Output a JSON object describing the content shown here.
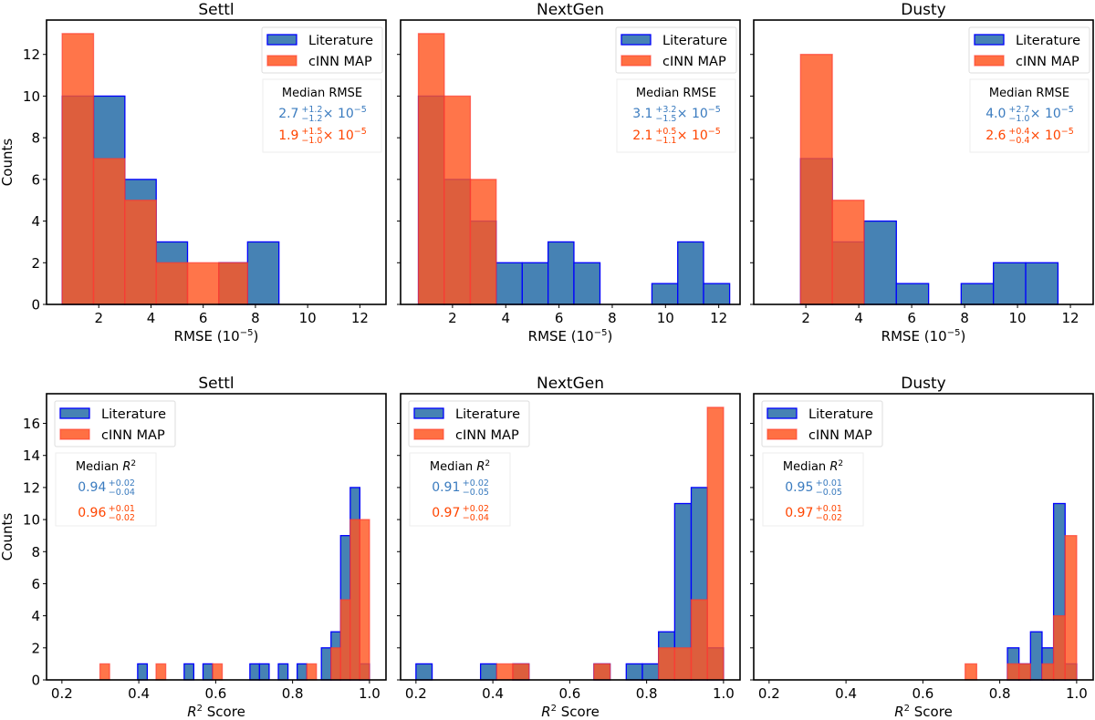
{
  "colors": {
    "literature_fill": "#4682b4",
    "literature_edge": "#0000ff",
    "cinn_fill": "#ff5722",
    "cinn_edge": "#ff3b30",
    "literature_text": "#3a7bbf",
    "cinn_text": "#ff4500",
    "axis": "#000000"
  },
  "chart_data": [
    {
      "type": "bar",
      "panel": "top-left",
      "title": "Settl",
      "xlabel": "RMSE (10⁻⁵)",
      "ylabel": "Counts",
      "xlim": [
        0.0,
        13.0
      ],
      "ylim": [
        0,
        13.65
      ],
      "xticks": [
        2,
        4,
        6,
        8,
        10,
        12
      ],
      "yticks": [
        0,
        2,
        4,
        6,
        8,
        10,
        12
      ],
      "show_yticklabels": true,
      "legend": {
        "position": "top-right",
        "entries": [
          "Literature",
          "cINN MAP"
        ]
      },
      "annotation": {
        "heading": "Median RMSE",
        "heading_sup": "",
        "position": "right",
        "lines": [
          {
            "series": "Literature",
            "value": "2.7",
            "plus": "+1.2",
            "minus": "−1.2",
            "suffix": " × 10",
            "exp": "−5"
          },
          {
            "series": "cINN MAP",
            "value": "1.9",
            "plus": "+1.5",
            "minus": "−1.0",
            "suffix": " × 10",
            "exp": "−5"
          }
        ]
      },
      "series": [
        {
          "name": "Literature",
          "bins": [
            [
              0.6,
              1.8,
              10
            ],
            [
              1.8,
              3.0,
              10
            ],
            [
              3.0,
              4.2,
              6
            ],
            [
              4.2,
              5.4,
              3
            ],
            [
              6.6,
              7.7,
              2
            ],
            [
              7.7,
              8.9,
              3
            ]
          ]
        },
        {
          "name": "cINN MAP",
          "bins": [
            [
              0.6,
              1.8,
              13
            ],
            [
              1.8,
              3.0,
              7
            ],
            [
              3.0,
              4.2,
              5
            ],
            [
              4.2,
              5.4,
              2
            ],
            [
              5.4,
              6.6,
              2
            ],
            [
              6.6,
              7.7,
              2
            ]
          ]
        }
      ]
    },
    {
      "type": "bar",
      "panel": "top-middle",
      "title": "NextGen",
      "xlabel": "RMSE (10⁻⁵)",
      "ylabel": "",
      "xlim": [
        0.05,
        12.8
      ],
      "ylim": [
        0,
        13.65
      ],
      "xticks": [
        2,
        4,
        6,
        8,
        10,
        12
      ],
      "yticks": [
        0,
        2,
        4,
        6,
        8,
        10,
        12
      ],
      "show_yticklabels": false,
      "legend": {
        "position": "top-right",
        "entries": [
          "Literature",
          "cINN MAP"
        ]
      },
      "annotation": {
        "heading": "Median RMSE",
        "heading_sup": "",
        "position": "right",
        "lines": [
          {
            "series": "Literature",
            "value": "3.1",
            "plus": "+3.2",
            "minus": "−1.5",
            "suffix": " × 10",
            "exp": "−5"
          },
          {
            "series": "cINN MAP",
            "value": "2.1",
            "plus": "+0.5",
            "minus": "−1.1",
            "suffix": " × 10",
            "exp": "−5"
          }
        ]
      },
      "series": [
        {
          "name": "Literature",
          "bins": [
            [
              0.72,
              1.69,
              10
            ],
            [
              1.69,
              2.67,
              6
            ],
            [
              2.67,
              3.64,
              4
            ],
            [
              3.64,
              4.62,
              2
            ],
            [
              4.62,
              5.59,
              2
            ],
            [
              5.59,
              6.56,
              3
            ],
            [
              6.56,
              7.54,
              2
            ],
            [
              9.49,
              10.46,
              1
            ],
            [
              10.46,
              11.43,
              3
            ],
            [
              11.43,
              12.41,
              1
            ]
          ]
        },
        {
          "name": "cINN MAP",
          "bins": [
            [
              0.72,
              1.69,
              13
            ],
            [
              1.69,
              2.67,
              10
            ],
            [
              2.67,
              3.64,
              6
            ]
          ]
        }
      ]
    },
    {
      "type": "bar",
      "panel": "top-right",
      "title": "Dusty",
      "xlabel": "RMSE (10⁻⁵)",
      "ylabel": "",
      "xlim": [
        0.03,
        12.86
      ],
      "ylim": [
        0,
        13.65
      ],
      "xticks": [
        2,
        4,
        6,
        8,
        10,
        12
      ],
      "yticks": [
        0,
        2,
        4,
        6,
        8,
        10,
        12
      ],
      "show_yticklabels": false,
      "legend": {
        "position": "top-right",
        "entries": [
          "Literature",
          "cINN MAP"
        ]
      },
      "annotation": {
        "heading": "Median RMSE",
        "heading_sup": "",
        "position": "right",
        "lines": [
          {
            "series": "Literature",
            "value": "4.0",
            "plus": "+2.7",
            "minus": "−1.0",
            "suffix": " × 10",
            "exp": "−5"
          },
          {
            "series": "cINN MAP",
            "value": "2.6",
            "plus": "+0.4",
            "minus": "−0.4",
            "suffix": " × 10",
            "exp": "−5"
          }
        ]
      },
      "series": [
        {
          "name": "Literature",
          "bins": [
            [
              1.8,
              3.0,
              7
            ],
            [
              3.0,
              4.2,
              3
            ],
            [
              4.2,
              5.42,
              4
            ],
            [
              5.42,
              6.64,
              1
            ],
            [
              7.87,
              9.09,
              1
            ],
            [
              9.09,
              10.31,
              2
            ],
            [
              10.31,
              11.53,
              2
            ]
          ]
        },
        {
          "name": "cINN MAP",
          "bins": [
            [
              1.8,
              3.0,
              12
            ],
            [
              3.0,
              4.2,
              5
            ]
          ]
        }
      ]
    },
    {
      "type": "bar",
      "panel": "bottom-left",
      "title": "Settl",
      "xlabel": "Score",
      "xlabel_prefix": "R",
      "xlabel_sup": "2",
      "ylabel": "Counts",
      "xlim": [
        0.16,
        1.043
      ],
      "ylim": [
        0,
        17.85
      ],
      "xticks": [
        0.2,
        0.4,
        0.6,
        0.8,
        1.0
      ],
      "xticklabels": [
        "0.2",
        "0.4",
        "0.6",
        "0.8",
        "1.0"
      ],
      "yticks": [
        0,
        2,
        4,
        6,
        8,
        10,
        12,
        14,
        16
      ],
      "show_yticklabels": true,
      "legend": {
        "position": "top-left",
        "entries": [
          "Literature",
          "cINN MAP"
        ]
      },
      "annotation": {
        "heading": "Median ",
        "heading_sup": "2",
        "position": "left",
        "lines": [
          {
            "series": "Literature",
            "value": "0.94",
            "plus": "+0.02",
            "minus": "−0.04",
            "suffix": "",
            "exp": ""
          },
          {
            "series": "cINN MAP",
            "value": "0.96",
            "plus": "+0.01",
            "minus": "−0.02",
            "suffix": "",
            "exp": ""
          }
        ]
      },
      "series": [
        {
          "name": "Literature",
          "bins": [
            [
              0.397,
              0.422,
              1
            ],
            [
              0.518,
              0.543,
              1
            ],
            [
              0.567,
              0.592,
              1
            ],
            [
              0.689,
              0.714,
              1
            ],
            [
              0.714,
              0.739,
              1
            ],
            [
              0.763,
              0.788,
              1
            ],
            [
              0.812,
              0.837,
              1
            ],
            [
              0.875,
              0.9,
              2
            ],
            [
              0.9,
              0.925,
              3
            ],
            [
              0.925,
              0.95,
              9
            ],
            [
              0.95,
              0.975,
              12
            ],
            [
              0.975,
              1.0,
              1
            ]
          ]
        },
        {
          "name": "cINN MAP",
          "bins": [
            [
              0.299,
              0.324,
              1
            ],
            [
              0.445,
              0.47,
              1
            ],
            [
              0.592,
              0.617,
              1
            ],
            [
              0.837,
              0.862,
              1
            ],
            [
              0.9,
              0.925,
              2
            ],
            [
              0.925,
              0.95,
              5
            ],
            [
              0.95,
              0.975,
              10
            ],
            [
              0.975,
              1.0,
              10
            ]
          ]
        }
      ]
    },
    {
      "type": "bar",
      "panel": "bottom-middle",
      "title": "NextGen",
      "xlabel": "Score",
      "xlabel_prefix": "R",
      "xlabel_sup": "2",
      "ylabel": "",
      "xlim": [
        0.16,
        1.043
      ],
      "ylim": [
        0,
        17.85
      ],
      "xticks": [
        0.2,
        0.4,
        0.6,
        0.8,
        1.0
      ],
      "xticklabels": [
        "0.2",
        "0.4",
        "0.6",
        "0.8",
        "1.0"
      ],
      "yticks": [
        0,
        2,
        4,
        6,
        8,
        10,
        12,
        14,
        16
      ],
      "show_yticklabels": false,
      "legend": {
        "position": "top-left",
        "entries": [
          "Literature",
          "cINN MAP"
        ]
      },
      "annotation": {
        "heading": "Median ",
        "heading_sup": "2",
        "position": "left",
        "lines": [
          {
            "series": "Literature",
            "value": "0.91",
            "plus": "+0.02",
            "minus": "−0.05",
            "suffix": "",
            "exp": ""
          },
          {
            "series": "cINN MAP",
            "value": "0.97",
            "plus": "+0.02",
            "minus": "−0.04",
            "suffix": "",
            "exp": ""
          }
        ]
      },
      "series": [
        {
          "name": "Literature",
          "bins": [
            [
              0.2,
              0.242,
              1
            ],
            [
              0.368,
              0.41,
              1
            ],
            [
              0.452,
              0.494,
              1
            ],
            [
              0.663,
              0.705,
              1
            ],
            [
              0.747,
              0.789,
              1
            ],
            [
              0.789,
              0.831,
              1
            ],
            [
              0.831,
              0.873,
              3
            ],
            [
              0.873,
              0.916,
              11
            ],
            [
              0.916,
              0.958,
              12
            ],
            [
              0.958,
              1.0,
              2
            ]
          ]
        },
        {
          "name": "cINN MAP",
          "bins": [
            [
              0.41,
              0.452,
              1
            ],
            [
              0.452,
              0.494,
              1
            ],
            [
              0.663,
              0.705,
              1
            ],
            [
              0.831,
              0.873,
              2
            ],
            [
              0.873,
              0.916,
              2
            ],
            [
              0.916,
              0.958,
              5
            ],
            [
              0.958,
              1.0,
              17
            ]
          ]
        }
      ]
    },
    {
      "type": "bar",
      "panel": "bottom-right",
      "title": "Dusty",
      "xlabel": "Score",
      "xlabel_prefix": "R",
      "xlabel_sup": "2",
      "ylabel": "",
      "xlim": [
        0.16,
        1.043
      ],
      "ylim": [
        0,
        17.85
      ],
      "xticks": [
        0.2,
        0.4,
        0.6,
        0.8,
        1.0
      ],
      "xticklabels": [
        "0.2",
        "0.4",
        "0.6",
        "0.8",
        "1.0"
      ],
      "yticks": [
        0,
        2,
        4,
        6,
        8,
        10,
        12,
        14,
        16
      ],
      "show_yticklabels": false,
      "legend": {
        "position": "top-left",
        "entries": [
          "Literature",
          "cINN MAP"
        ]
      },
      "annotation": {
        "heading": "Median ",
        "heading_sup": "2",
        "position": "left",
        "lines": [
          {
            "series": "Literature",
            "value": "0.95",
            "plus": "+0.01",
            "minus": "−0.05",
            "suffix": "",
            "exp": ""
          },
          {
            "series": "cINN MAP",
            "value": "0.97",
            "plus": "+0.01",
            "minus": "−0.02",
            "suffix": "",
            "exp": ""
          }
        ]
      },
      "series": [
        {
          "name": "Literature",
          "bins": [
            [
              0.82,
              0.85,
              2
            ],
            [
              0.85,
              0.88,
              1
            ],
            [
              0.88,
              0.91,
              3
            ],
            [
              0.91,
              0.94,
              2
            ],
            [
              0.94,
              0.97,
              11
            ],
            [
              0.97,
              1.0,
              1
            ]
          ]
        },
        {
          "name": "cINN MAP",
          "bins": [
            [
              0.71,
              0.74,
              1
            ],
            [
              0.82,
              0.85,
              1
            ],
            [
              0.85,
              0.88,
              1
            ],
            [
              0.91,
              0.94,
              1
            ],
            [
              0.94,
              0.97,
              4
            ],
            [
              0.97,
              1.0,
              9
            ]
          ]
        }
      ]
    }
  ]
}
